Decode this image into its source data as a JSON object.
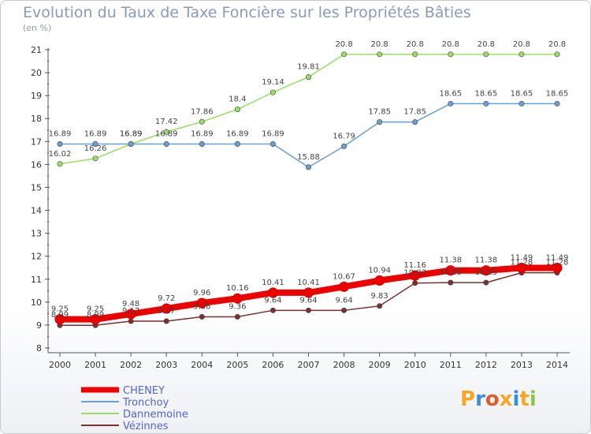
{
  "header": {
    "title": "Evolution du Taux de Taxe Foncière sur les Propriétés Bâties",
    "unit": "(en %)"
  },
  "logo": {
    "text": "Proxiti",
    "colors": [
      "#f5a623",
      "#3a8fd9",
      "#e05a2a",
      "#f5a623",
      "#3a8fd9",
      "#f5a623",
      "#8cc63f"
    ]
  },
  "chart_data": {
    "type": "line",
    "title": "Evolution du Taux de Taxe Foncière sur les Propriétés Bâties",
    "ylabel": "(en %)",
    "x": [
      2000,
      2001,
      2002,
      2003,
      2004,
      2005,
      2006,
      2007,
      2008,
      2009,
      2010,
      2011,
      2012,
      2013,
      2014
    ],
    "ylim": [
      8,
      21
    ],
    "yticks": [
      8,
      9,
      10,
      11,
      12,
      13,
      14,
      15,
      16,
      17,
      18,
      19,
      20,
      21
    ],
    "grid": false,
    "legend": "bottom-left",
    "series": [
      {
        "name": "CHENEY",
        "color": "#ee0000",
        "width": 8,
        "values": [
          9.25,
          9.25,
          9.48,
          9.72,
          9.96,
          10.16,
          10.41,
          10.41,
          10.67,
          10.94,
          11.16,
          11.38,
          11.38,
          11.49,
          11.49
        ],
        "labels": [
          "9.25",
          "9.25",
          "9.48",
          "9.72",
          "9.96",
          "10.16",
          "10.41",
          "10.41",
          "10.67",
          "10.94",
          "11.16",
          "11.38",
          "11.38",
          "11.49",
          "11.49"
        ]
      },
      {
        "name": "Tronchoy",
        "color": "#6a9fd0",
        "width": 1.5,
        "values": [
          16.89,
          16.89,
          16.89,
          16.89,
          16.89,
          16.89,
          16.89,
          15.88,
          16.79,
          17.85,
          17.85,
          18.65,
          18.65,
          18.65,
          18.65
        ],
        "labels": [
          "16.89",
          "16.89",
          "16.89",
          "16.89",
          "16.89",
          "16.89",
          "16.89",
          "15.88",
          "16.79",
          "17.85",
          "17.85",
          "18.65",
          "18.65",
          "18.65",
          "18.65"
        ]
      },
      {
        "name": "Dannemoine",
        "color": "#99dd66",
        "width": 1.5,
        "values": [
          16.02,
          16.26,
          16.89,
          17.42,
          17.86,
          18.4,
          19.14,
          19.81,
          20.8,
          20.8,
          20.8,
          20.8,
          20.8,
          20.8,
          20.8
        ],
        "labels": [
          "16.02",
          "16.26",
          "16.89",
          "17.42",
          "17.86",
          "18.4",
          "19.14",
          "19.81",
          "20.8",
          "20.8",
          "20.8",
          "20.8",
          "20.8",
          "20.8",
          "20.8"
        ]
      },
      {
        "name": "Vézinnes",
        "color": "#7a3030",
        "width": 1.5,
        "values": [
          8.99,
          8.99,
          9.17,
          9.17,
          9.36,
          9.36,
          9.64,
          9.64,
          9.64,
          9.83,
          10.83,
          10.85,
          10.85,
          11.28,
          11.28
        ],
        "labels": [
          "8.99",
          "8.99",
          "9.17",
          "9.17",
          "9.36",
          "9.36",
          "9.64",
          "9.64",
          "9.64",
          "9.83",
          "10.83",
          "10.85",
          "10.85",
          "11.28",
          "11.28"
        ]
      }
    ]
  }
}
